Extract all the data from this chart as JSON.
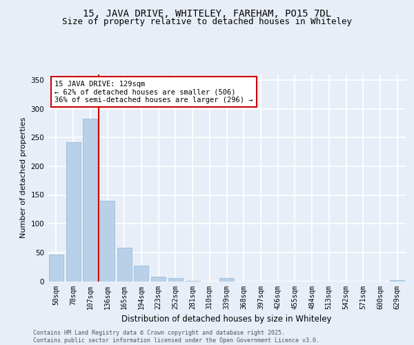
{
  "title": "15, JAVA DRIVE, WHITELEY, FAREHAM, PO15 7DL",
  "subtitle": "Size of property relative to detached houses in Whiteley",
  "xlabel": "Distribution of detached houses by size in Whiteley",
  "ylabel": "Number of detached properties",
  "categories": [
    "50sqm",
    "78sqm",
    "107sqm",
    "136sqm",
    "165sqm",
    "194sqm",
    "223sqm",
    "252sqm",
    "281sqm",
    "310sqm",
    "339sqm",
    "368sqm",
    "397sqm",
    "426sqm",
    "455sqm",
    "484sqm",
    "513sqm",
    "542sqm",
    "571sqm",
    "600sqm",
    "629sqm"
  ],
  "values": [
    46,
    242,
    283,
    140,
    58,
    27,
    8,
    5,
    1,
    0,
    6,
    0,
    0,
    0,
    0,
    0,
    0,
    0,
    0,
    0,
    2
  ],
  "bar_color": "#b8d0e8",
  "bar_edge_color": "#90b8d8",
  "vline_pos": 2.5,
  "vline_color": "#cc0000",
  "annotation_text": "15 JAVA DRIVE: 129sqm\n← 62% of detached houses are smaller (506)\n36% of semi-detached houses are larger (296) →",
  "annotation_box_facecolor": "#ffffff",
  "annotation_box_edgecolor": "#cc0000",
  "background_color": "#e8eef8",
  "plot_bg_color": "#e8eef8",
  "grid_color": "#ffffff",
  "footer_text": "Contains HM Land Registry data © Crown copyright and database right 2025.\nContains public sector information licensed under the Open Government Licence v3.0.",
  "title_fontsize": 10,
  "subtitle_fontsize": 9,
  "ylabel_fontsize": 8,
  "xlabel_fontsize": 8.5,
  "tick_fontsize": 7,
  "annotation_fontsize": 7.5,
  "footer_fontsize": 6,
  "ylim": [
    0,
    360
  ],
  "yticks": [
    0,
    50,
    100,
    150,
    200,
    250,
    300,
    350
  ]
}
